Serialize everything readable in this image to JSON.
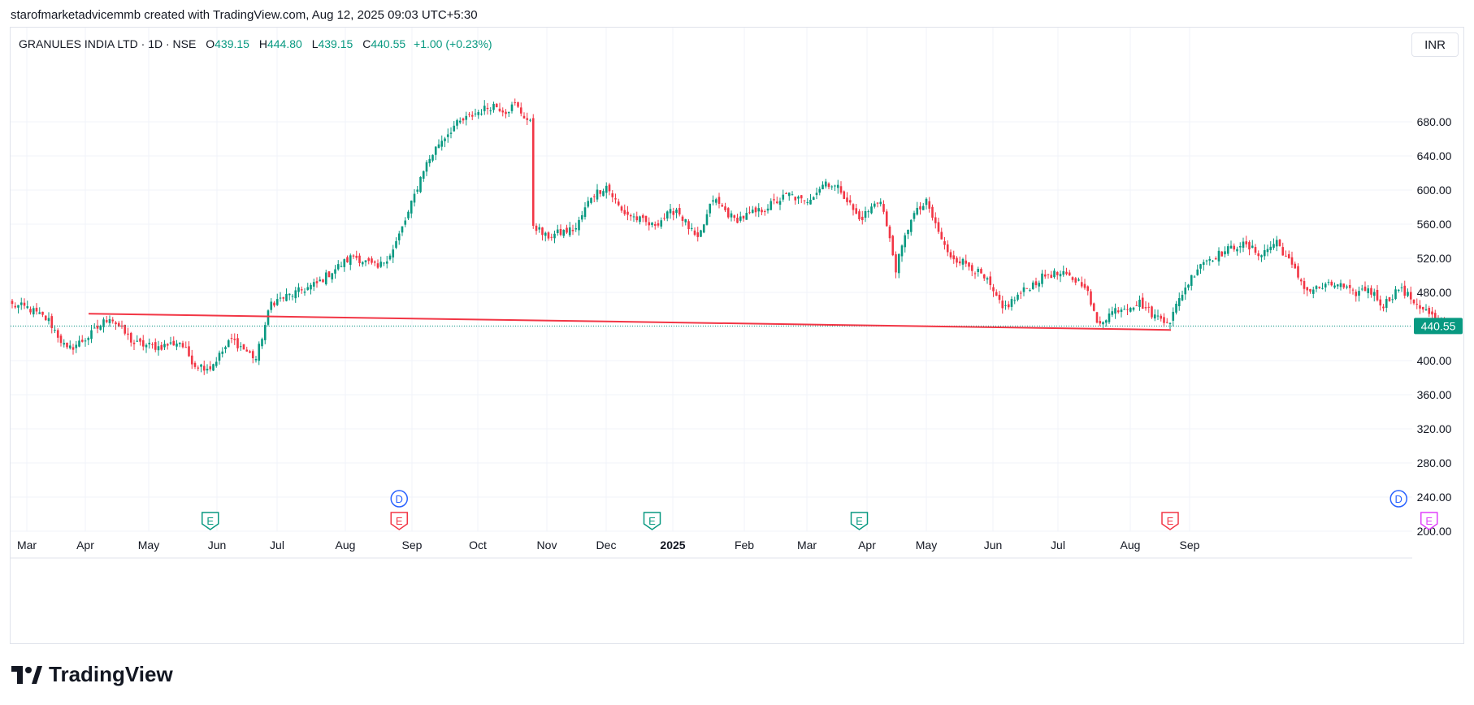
{
  "header": {
    "credit": "starofmarketadvicemmb created with TradingView.com, Aug 12, 2025 09:03 UTC+5:30"
  },
  "legend": {
    "symbol": "GRANULES INDIA LTD · 1D · NSE",
    "o_label": "O",
    "o_value": "439.15",
    "h_label": "H",
    "h_value": "444.80",
    "l_label": "L",
    "l_value": "439.15",
    "c_label": "C",
    "c_value": "440.55",
    "change": "+1.00 (+0.23%)"
  },
  "currency": "INR",
  "brand": {
    "name": "TradingView"
  },
  "colors": {
    "up": "#089981",
    "down": "#f23645",
    "trendline": "#f23645",
    "grid": "#f0f3fa",
    "last_price_bg": "#089981"
  },
  "chart_data": {
    "type": "candlestick",
    "y_ticks": [
      "680.00",
      "640.00",
      "600.00",
      "560.00",
      "520.00",
      "480.00",
      "440.00",
      "400.00",
      "360.00",
      "320.00",
      "280.00",
      "240.00",
      "200.00"
    ],
    "ylim": [
      190,
      725
    ],
    "x_labels": [
      "Mar",
      "Apr",
      "May",
      "Jun",
      "Jul",
      "Aug",
      "Sep",
      "Oct",
      "Nov",
      "Dec",
      "2025",
      "Feb",
      "Mar",
      "Apr",
      "May",
      "Jun",
      "Jul",
      "Aug",
      "Sep"
    ],
    "x_label_bold_index": 10,
    "last_price": 440.55,
    "last_price_label": "440.55",
    "ohlc_anchor_closes": [
      [
        0,
        465
      ],
      [
        5,
        462
      ],
      [
        12,
        447
      ],
      [
        18,
        412
      ],
      [
        25,
        428
      ],
      [
        32,
        452
      ],
      [
        40,
        420
      ],
      [
        48,
        416
      ],
      [
        55,
        422
      ],
      [
        60,
        395
      ],
      [
        65,
        392
      ],
      [
        72,
        425
      ],
      [
        80,
        402
      ],
      [
        85,
        468
      ],
      [
        92,
        478
      ],
      [
        100,
        490
      ],
      [
        105,
        505
      ],
      [
        112,
        523
      ],
      [
        120,
        508
      ],
      [
        125,
        530
      ],
      [
        130,
        573
      ],
      [
        135,
        625
      ],
      [
        140,
        655
      ],
      [
        145,
        675
      ],
      [
        152,
        690
      ],
      [
        158,
        700
      ],
      [
        162,
        693
      ],
      [
        165,
        700
      ],
      [
        170,
        678
      ],
      [
        171,
        560
      ],
      [
        175,
        545
      ],
      [
        185,
        555
      ],
      [
        190,
        593
      ],
      [
        195,
        605
      ],
      [
        200,
        575
      ],
      [
        210,
        558
      ],
      [
        218,
        578
      ],
      [
        225,
        540
      ],
      [
        230,
        590
      ],
      [
        237,
        565
      ],
      [
        245,
        575
      ],
      [
        255,
        595
      ],
      [
        260,
        585
      ],
      [
        267,
        610
      ],
      [
        272,
        600
      ],
      [
        278,
        565
      ],
      [
        285,
        590
      ],
      [
        290,
        508
      ],
      [
        295,
        568
      ],
      [
        300,
        585
      ],
      [
        307,
        525
      ],
      [
        315,
        510
      ],
      [
        320,
        492
      ],
      [
        325,
        460
      ],
      [
        333,
        485
      ],
      [
        340,
        502
      ],
      [
        345,
        500
      ],
      [
        352,
        490
      ],
      [
        356,
        443
      ],
      [
        362,
        460
      ],
      [
        370,
        468
      ],
      [
        375,
        452
      ],
      [
        380,
        447
      ],
      [
        384,
        480
      ],
      [
        390,
        515
      ],
      [
        398,
        528
      ],
      [
        403,
        537
      ],
      [
        410,
        525
      ],
      [
        415,
        540
      ],
      [
        420,
        510
      ],
      [
        425,
        482
      ],
      [
        435,
        490
      ],
      [
        440,
        478
      ],
      [
        445,
        485
      ],
      [
        450,
        465
      ],
      [
        455,
        485
      ],
      [
        460,
        470
      ],
      [
        465,
        455
      ],
      [
        468,
        445
      ],
      [
        470,
        440.55
      ]
    ],
    "events": [
      {
        "type": "earnings",
        "label": "E",
        "bar": 65,
        "color": "#089981"
      },
      {
        "type": "earnings",
        "label": "E",
        "bar": 127,
        "color": "#f23645"
      },
      {
        "type": "dividend",
        "label": "D",
        "bar": 127,
        "color": "#2962ff"
      },
      {
        "type": "earnings",
        "label": "E",
        "bar": 210,
        "color": "#089981"
      },
      {
        "type": "earnings",
        "label": "E",
        "bar": 278,
        "color": "#089981"
      },
      {
        "type": "earnings",
        "label": "E",
        "bar": 380,
        "color": "#f23645"
      },
      {
        "type": "dividend",
        "label": "D",
        "bar": 455,
        "color": "#2962ff"
      },
      {
        "type": "earnings",
        "label": "E",
        "bar": 465,
        "color": "#e040fb"
      }
    ]
  }
}
